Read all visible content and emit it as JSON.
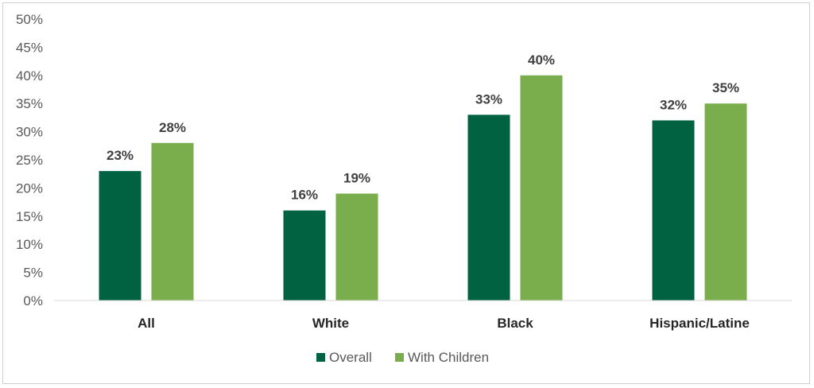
{
  "chart_data": {
    "type": "bar",
    "categories": [
      "All",
      "White",
      "Black",
      "Hispanic/Latine"
    ],
    "series": [
      {
        "name": "Overall",
        "values": [
          23,
          16,
          33,
          32
        ],
        "color": "#006241"
      },
      {
        "name": "With Children",
        "values": [
          28,
          19,
          40,
          35
        ],
        "color": "#7aad4b"
      }
    ],
    "data_labels": [
      [
        "23%",
        "16%",
        "33%",
        "32%"
      ],
      [
        "28%",
        "19%",
        "40%",
        "35%"
      ]
    ],
    "yticks": [
      "0%",
      "5%",
      "10%",
      "15%",
      "20%",
      "25%",
      "30%",
      "35%",
      "40%",
      "45%",
      "50%"
    ],
    "ylim": [
      0,
      50
    ],
    "y_step": 5,
    "grid": false,
    "legend_position": "bottom",
    "axis_color": "#d9d9d9"
  }
}
